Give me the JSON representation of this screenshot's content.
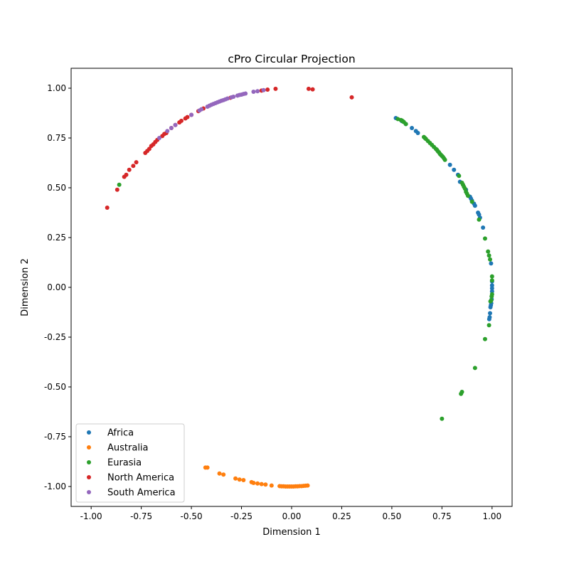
{
  "chart_data": {
    "type": "scatter",
    "title": "cPro Circular Projection",
    "xlabel": "Dimension 1",
    "ylabel": "Dimension 2",
    "xlim": [
      -1.1,
      1.1
    ],
    "ylim": [
      -1.1,
      1.1
    ],
    "xticks": [
      "-1.00",
      "-0.75",
      "-0.50",
      "-0.25",
      "0.00",
      "0.25",
      "0.50",
      "0.75",
      "1.00"
    ],
    "yticks": [
      "-1.00",
      "-0.75",
      "-0.50",
      "-0.25",
      "0.00",
      "0.25",
      "0.50",
      "0.75",
      "1.00"
    ],
    "xtick_values": [
      -1.0,
      -0.75,
      -0.5,
      -0.25,
      0.0,
      0.25,
      0.5,
      0.75,
      1.0
    ],
    "ytick_values": [
      -1.0,
      -0.75,
      -0.5,
      -0.25,
      0.0,
      0.25,
      0.5,
      0.75,
      1.0
    ],
    "grid": false,
    "legend_position": "lower-left",
    "series": [
      {
        "name": "Africa",
        "color": "#1f77b4",
        "points": [
          [
            0.52,
            0.85
          ],
          [
            0.55,
            0.835
          ],
          [
            0.57,
            0.82
          ],
          [
            0.6,
            0.8
          ],
          [
            0.62,
            0.785
          ],
          [
            0.63,
            0.775
          ],
          [
            0.79,
            0.615
          ],
          [
            0.81,
            0.59
          ],
          [
            0.83,
            0.565
          ],
          [
            0.84,
            0.53
          ],
          [
            0.87,
            0.49
          ],
          [
            0.89,
            0.455
          ],
          [
            0.895,
            0.445
          ],
          [
            0.9,
            0.435
          ],
          [
            0.91,
            0.42
          ],
          [
            0.915,
            0.41
          ],
          [
            0.93,
            0.375
          ],
          [
            0.935,
            0.365
          ],
          [
            0.94,
            0.35
          ],
          [
            0.955,
            0.3
          ],
          [
            0.995,
            0.12
          ],
          [
            1.0,
            0.03
          ],
          [
            1.0,
            0.01
          ],
          [
            1.0,
            -0.005
          ],
          [
            1.0,
            -0.02
          ],
          [
            0.998,
            -0.06
          ],
          [
            0.996,
            -0.08
          ],
          [
            0.994,
            -0.09
          ],
          [
            0.992,
            -0.1
          ],
          [
            0.99,
            -0.13
          ],
          [
            0.988,
            -0.15
          ],
          [
            0.986,
            -0.16
          ]
        ]
      },
      {
        "name": "Australia",
        "color": "#ff7f0e",
        "points": [
          [
            -0.43,
            -0.905
          ],
          [
            -0.42,
            -0.905
          ],
          [
            -0.36,
            -0.935
          ],
          [
            -0.34,
            -0.94
          ],
          [
            -0.28,
            -0.96
          ],
          [
            -0.26,
            -0.965
          ],
          [
            -0.24,
            -0.968
          ],
          [
            -0.2,
            -0.978
          ],
          [
            -0.19,
            -0.982
          ],
          [
            -0.17,
            -0.985
          ],
          [
            -0.15,
            -0.988
          ],
          [
            -0.13,
            -0.99
          ],
          [
            -0.1,
            -0.995
          ],
          [
            -0.06,
            -0.998
          ],
          [
            -0.05,
            -0.999
          ],
          [
            -0.04,
            -0.999
          ],
          [
            -0.03,
            -1.0
          ],
          [
            -0.02,
            -1.0
          ],
          [
            -0.01,
            -1.0
          ],
          [
            0.0,
            -1.0
          ],
          [
            0.01,
            -1.0
          ],
          [
            0.02,
            -0.999
          ],
          [
            0.03,
            -0.999
          ],
          [
            0.04,
            -0.998
          ],
          [
            0.05,
            -0.998
          ],
          [
            0.06,
            -0.997
          ],
          [
            0.07,
            -0.996
          ],
          [
            0.08,
            -0.995
          ]
        ]
      },
      {
        "name": "Eurasia",
        "color": "#2ca02c",
        "points": [
          [
            0.53,
            0.845
          ],
          [
            0.545,
            0.84
          ],
          [
            0.55,
            0.838
          ],
          [
            0.555,
            0.834
          ],
          [
            0.56,
            0.83
          ],
          [
            0.57,
            0.82
          ],
          [
            0.66,
            0.755
          ],
          [
            0.665,
            0.75
          ],
          [
            0.67,
            0.745
          ],
          [
            0.68,
            0.735
          ],
          [
            0.69,
            0.725
          ],
          [
            0.7,
            0.715
          ],
          [
            0.71,
            0.705
          ],
          [
            0.72,
            0.695
          ],
          [
            0.725,
            0.69
          ],
          [
            0.73,
            0.683
          ],
          [
            0.735,
            0.678
          ],
          [
            0.74,
            0.67
          ],
          [
            0.745,
            0.665
          ],
          [
            0.75,
            0.66
          ],
          [
            0.755,
            0.655
          ],
          [
            0.76,
            0.648
          ],
          [
            0.765,
            0.64
          ],
          [
            0.835,
            0.56
          ],
          [
            0.85,
            0.525
          ],
          [
            0.855,
            0.515
          ],
          [
            0.86,
            0.505
          ],
          [
            0.865,
            0.495
          ],
          [
            0.87,
            0.48
          ],
          [
            0.875,
            0.47
          ],
          [
            0.88,
            0.46
          ],
          [
            0.9,
            0.43
          ],
          [
            0.935,
            0.34
          ],
          [
            0.965,
            0.245
          ],
          [
            0.98,
            0.18
          ],
          [
            0.985,
            0.16
          ],
          [
            0.99,
            0.14
          ],
          [
            1.0,
            0.055
          ],
          [
            1.0,
            0.035
          ],
          [
            1.0,
            -0.035
          ],
          [
            0.998,
            -0.045
          ],
          [
            0.996,
            -0.065
          ],
          [
            0.992,
            -0.07
          ],
          [
            0.985,
            -0.19
          ],
          [
            0.965,
            -0.26
          ],
          [
            0.915,
            -0.405
          ],
          [
            0.85,
            -0.525
          ],
          [
            0.845,
            -0.535
          ],
          [
            0.75,
            -0.66
          ],
          [
            -0.86,
            0.515
          ]
        ]
      },
      {
        "name": "North America",
        "color": "#d62728",
        "points": [
          [
            -0.92,
            0.4
          ],
          [
            -0.87,
            0.49
          ],
          [
            -0.835,
            0.555
          ],
          [
            -0.825,
            0.565
          ],
          [
            -0.81,
            0.59
          ],
          [
            -0.79,
            0.61
          ],
          [
            -0.775,
            0.628
          ],
          [
            -0.73,
            0.675
          ],
          [
            -0.72,
            0.685
          ],
          [
            -0.71,
            0.695
          ],
          [
            -0.7,
            0.71
          ],
          [
            -0.69,
            0.718
          ],
          [
            -0.68,
            0.73
          ],
          [
            -0.67,
            0.74
          ],
          [
            -0.645,
            0.76
          ],
          [
            -0.635,
            0.77
          ],
          [
            -0.625,
            0.775
          ],
          [
            -0.6,
            0.8
          ],
          [
            -0.58,
            0.815
          ],
          [
            -0.56,
            0.828
          ],
          [
            -0.55,
            0.836
          ],
          [
            -0.53,
            0.848
          ],
          [
            -0.52,
            0.855
          ],
          [
            -0.5,
            0.866
          ],
          [
            -0.465,
            0.885
          ],
          [
            -0.44,
            0.898
          ],
          [
            -0.305,
            0.952
          ],
          [
            -0.15,
            0.988
          ],
          [
            -0.12,
            0.993
          ],
          [
            -0.08,
            0.997
          ],
          [
            0.085,
            0.997
          ],
          [
            0.105,
            0.994
          ],
          [
            0.3,
            0.954
          ]
        ]
      },
      {
        "name": "South America",
        "color": "#9467bd",
        "points": [
          [
            -0.66,
            0.75
          ],
          [
            -0.62,
            0.785
          ],
          [
            -0.6,
            0.8
          ],
          [
            -0.58,
            0.815
          ],
          [
            -0.5,
            0.866
          ],
          [
            -0.46,
            0.888
          ],
          [
            -0.45,
            0.894
          ],
          [
            -0.42,
            0.907
          ],
          [
            -0.41,
            0.912
          ],
          [
            -0.4,
            0.917
          ],
          [
            -0.39,
            0.921
          ],
          [
            -0.38,
            0.925
          ],
          [
            -0.37,
            0.929
          ],
          [
            -0.36,
            0.933
          ],
          [
            -0.35,
            0.937
          ],
          [
            -0.34,
            0.94
          ],
          [
            -0.33,
            0.944
          ],
          [
            -0.32,
            0.948
          ],
          [
            -0.3,
            0.954
          ],
          [
            -0.29,
            0.957
          ],
          [
            -0.27,
            0.963
          ],
          [
            -0.26,
            0.966
          ],
          [
            -0.25,
            0.968
          ],
          [
            -0.24,
            0.971
          ],
          [
            -0.23,
            0.973
          ],
          [
            -0.19,
            0.982
          ],
          [
            -0.17,
            0.985
          ],
          [
            -0.14,
            0.99
          ]
        ]
      }
    ]
  }
}
